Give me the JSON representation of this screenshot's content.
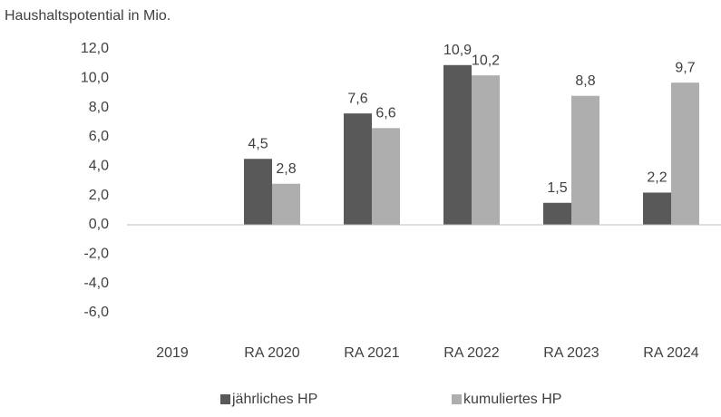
{
  "chart_data": {
    "type": "bar",
    "title": "Haushaltspotential in Mio.",
    "categories": [
      "2019",
      "RA 2020",
      "RA 2021",
      "RA 2022",
      "RA 2023",
      "RA 2024"
    ],
    "series": [
      {
        "name": "jährliches HP",
        "color": "#595959",
        "values": [
          null,
          4.5,
          7.6,
          10.9,
          1.5,
          2.2
        ],
        "value_labels": [
          null,
          "4,5",
          "7,6",
          "10,9",
          "1,5",
          "2,2"
        ]
      },
      {
        "name": "kumuliertes HP",
        "color": "#aeaeae",
        "values": [
          null,
          2.8,
          6.6,
          10.2,
          8.8,
          9.7
        ],
        "value_labels": [
          null,
          "2,8",
          "6,6",
          "10,2",
          "8,8",
          "9,7"
        ]
      }
    ],
    "ylim": [
      -6,
      12
    ],
    "yticks": [
      {
        "value": 12,
        "label": "12,0"
      },
      {
        "value": 10,
        "label": "10,0"
      },
      {
        "value": 8,
        "label": "8,0"
      },
      {
        "value": 6,
        "label": "6,0"
      },
      {
        "value": 4,
        "label": "4,0"
      },
      {
        "value": 2,
        "label": "2,0"
      },
      {
        "value": 0,
        "label": "0,0"
      },
      {
        "value": -2,
        "label": "-2,0"
      },
      {
        "value": -4,
        "label": "-4,0"
      },
      {
        "value": -6,
        "label": "-6,0"
      }
    ],
    "grid": false,
    "legend": "bottom"
  }
}
